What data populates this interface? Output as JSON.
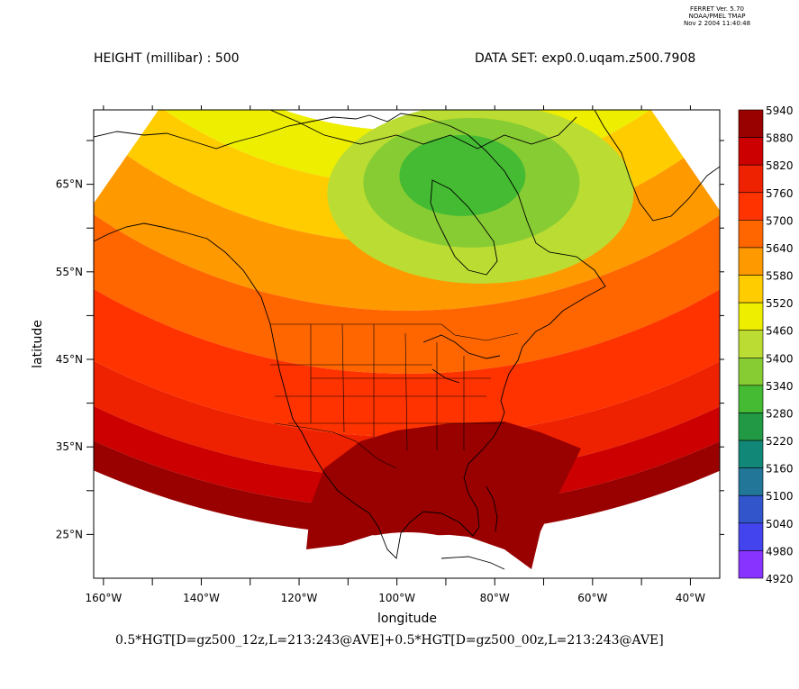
{
  "stamp": {
    "line1": "FERRET Ver. 5.70",
    "line2": "NOAA/PMEL TMAP",
    "line3": "Nov  2 2004 11:40:48"
  },
  "header": {
    "variable": "HEIGHT (millibar) : 500",
    "dataset": "DATA SET: exp0.0.uqam.z500.7908"
  },
  "footer": {
    "expression": "0.5*HGT[D=gz500_12z,L=213:243@AVE]+0.5*HGT[D=gz500_00z,L=213:243@AVE]"
  },
  "chart_data": {
    "type": "heatmap",
    "title": "HEIGHT (millibar) : 500",
    "xlabel": "longitude",
    "ylabel": "latitude",
    "xlim": [
      -162,
      -34
    ],
    "ylim": [
      20,
      73.5
    ],
    "x_ticks": [
      -160,
      -150,
      -140,
      -130,
      -120,
      -110,
      -100,
      -90,
      -80,
      -70,
      -60,
      -50,
      -40
    ],
    "x_tick_labels": [
      {
        "value": -160,
        "label": "160°W"
      },
      {
        "value": -140,
        "label": "140°W"
      },
      {
        "value": -120,
        "label": "120°W"
      },
      {
        "value": -100,
        "label": "100°W"
      },
      {
        "value": -80,
        "label": "80°W"
      },
      {
        "value": -60,
        "label": "60°W"
      },
      {
        "value": -40,
        "label": "40°W"
      }
    ],
    "y_ticks": [
      25,
      30,
      35,
      40,
      45,
      50,
      55,
      60,
      65,
      70
    ],
    "y_tick_labels": [
      {
        "value": 25,
        "label": "25°N"
      },
      {
        "value": 35,
        "label": "35°N"
      },
      {
        "value": 45,
        "label": "45°N"
      },
      {
        "value": 55,
        "label": "55°N"
      },
      {
        "value": 65,
        "label": "65°N"
      }
    ],
    "colorbar": {
      "levels": [
        5940,
        5880,
        5820,
        5760,
        5700,
        5640,
        5580,
        5520,
        5460,
        5400,
        5340,
        5280,
        5220,
        5160,
        5100,
        5040,
        4980,
        4920
      ],
      "colors": [
        "#990000",
        "#cc0000",
        "#ee2200",
        "#ff3300",
        "#ff6600",
        "#ff9900",
        "#ffcc00",
        "#eeee00",
        "#bbdd33",
        "#88cc33",
        "#44bb33",
        "#229944",
        "#118877",
        "#227799",
        "#3355cc",
        "#4444ee",
        "#8833ff",
        "#cc22ff"
      ]
    },
    "field_bands": [
      {
        "level": 5520,
        "color": "#eeee00"
      },
      {
        "level": 5580,
        "color": "#ffcc00"
      },
      {
        "level": 5640,
        "color": "#ff9900"
      },
      {
        "level": 5700,
        "color": "#ff6600"
      },
      {
        "level": 5760,
        "color": "#ff3300"
      },
      {
        "level": 5820,
        "color": "#ee2200"
      },
      {
        "level": 5880,
        "color": "#cc0000"
      },
      {
        "level": 5940,
        "color": "#990000"
      }
    ],
    "low_center": {
      "lon": -82,
      "lat": 66,
      "level": 5400
    },
    "colors": {
      "low_outer": "#bbdd33",
      "low_inner": "#88cc33",
      "low_core": "#44bb33"
    }
  }
}
